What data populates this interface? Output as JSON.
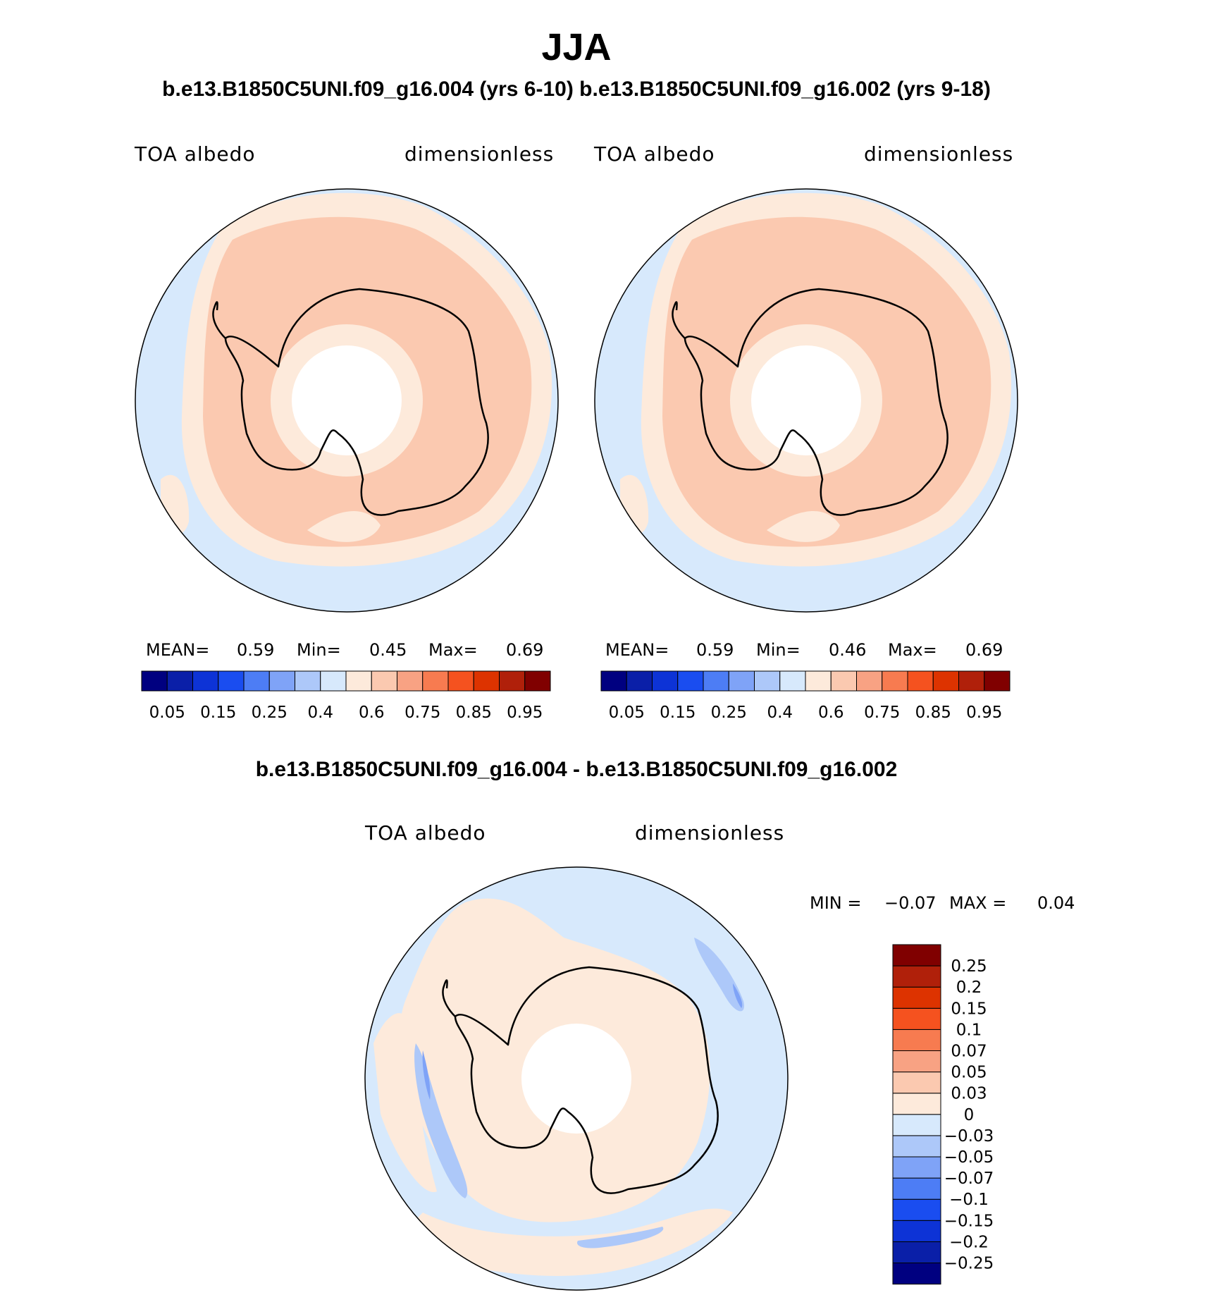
{
  "title": "JJA",
  "top_subtitle": "b.e13.B1850C5UNI.f09_g16.004 (yrs 6-10) b.e13.B1850C5UNI.f09_g16.002 (yrs 9-18)",
  "diff_subtitle": "b.e13.B1850C5UNI.f09_g16.004 - b.e13.B1850C5UNI.f09_g16.002",
  "panels": [
    {
      "variable": "TOA albedo",
      "units": "dimensionless",
      "stats": {
        "mean_label": "MEAN=",
        "mean": "0.59",
        "min_label": "Min=",
        "min": "0.45",
        "max_label": "Max=",
        "max": "0.69"
      }
    },
    {
      "variable": "TOA albedo",
      "units": "dimensionless",
      "stats": {
        "mean_label": "MEAN=",
        "mean": "0.59",
        "min_label": "Min=",
        "min": "0.46",
        "max_label": "Max=",
        "max": "0.69"
      }
    },
    {
      "variable": "TOA albedo",
      "units": "dimensionless",
      "stats": {
        "min_label": "MIN =",
        "min": "−0.07",
        "max_label": "MAX =",
        "max": "0.04"
      }
    }
  ],
  "colorbar_abs": {
    "colors": [
      "#000080",
      "#0a1fa8",
      "#0d33d6",
      "#1a4df0",
      "#4d7df5",
      "#7fa3f7",
      "#adc8f9",
      "#d7e9fc",
      "#fdeadb",
      "#fbc9b0",
      "#f8a283",
      "#f77b50",
      "#f5521f",
      "#dd3300",
      "#b0200a",
      "#800000"
    ],
    "tick_labels": [
      "0.05",
      "0.15",
      "0.25",
      "0.4",
      "0.6",
      "0.75",
      "0.85",
      "0.95"
    ]
  },
  "colorbar_diff": {
    "colors": [
      "#000080",
      "#0a1fa8",
      "#0d33d6",
      "#1a4df0",
      "#4d7df5",
      "#7fa3f7",
      "#adc8f9",
      "#d7e9fc",
      "#fdeadb",
      "#fbc9b0",
      "#f8a283",
      "#f77b50",
      "#f5521f",
      "#dd3300",
      "#b0200a",
      "#800000"
    ],
    "tick_labels": [
      "−0.25",
      "−0.2",
      "−0.15",
      "−0.1",
      "−0.07",
      "−0.05",
      "−0.03",
      "0",
      "0.03",
      "0.05",
      "0.07",
      "0.1",
      "0.15",
      "0.2",
      "0.25"
    ]
  },
  "map_colors": {
    "ocean_low": "#d7e9fc",
    "mid": "#fdeadb",
    "high": "#fbc9b0",
    "neg2": "#adc8f9",
    "neg3": "#7fa3f7",
    "missing": "#ffffff",
    "coast": "#000000"
  }
}
